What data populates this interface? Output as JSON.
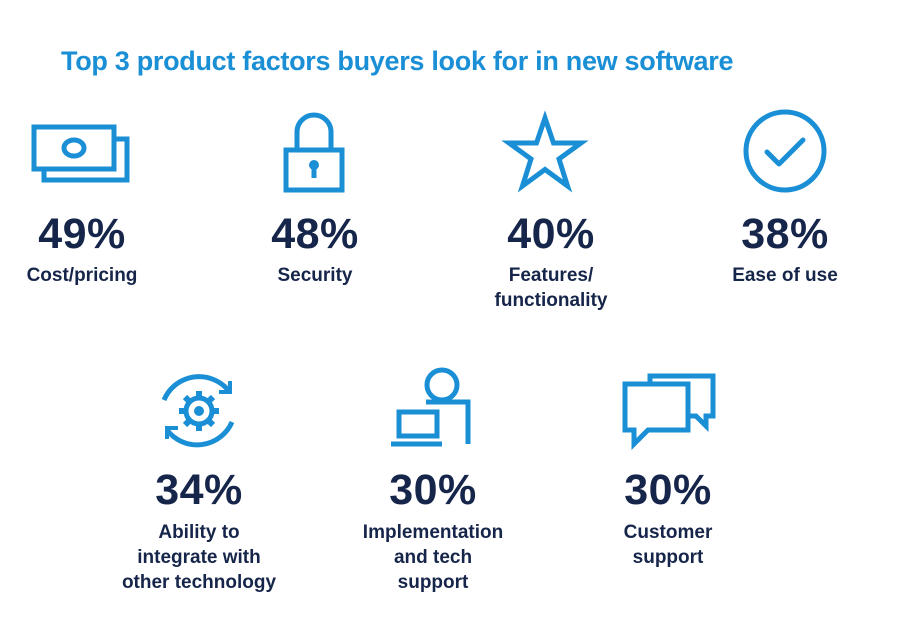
{
  "colors": {
    "title": "#1a8fd6",
    "icon": "#1a8fd6",
    "value": "#16254a",
    "label": "#16254a"
  },
  "title": "Top 3 product factors buyers look for in new software",
  "factors": [
    {
      "icon": "money-icon",
      "value": "49%",
      "label": "Cost/pricing"
    },
    {
      "icon": "lock-icon",
      "value": "48%",
      "label": "Security"
    },
    {
      "icon": "star-icon",
      "value": "40%",
      "label": "Features/\nfunctionality"
    },
    {
      "icon": "checkmark-circle-icon",
      "value": "38%",
      "label": "Ease of use"
    },
    {
      "icon": "gear-refresh-icon",
      "value": "34%",
      "label": "Ability to\nintegrate with\nother technology"
    },
    {
      "icon": "person-laptop-icon",
      "value": "30%",
      "label": "Implementation\nand tech\nsupport"
    },
    {
      "icon": "chat-bubbles-icon",
      "value": "30%",
      "label": "Customer\nsupport"
    }
  ]
}
